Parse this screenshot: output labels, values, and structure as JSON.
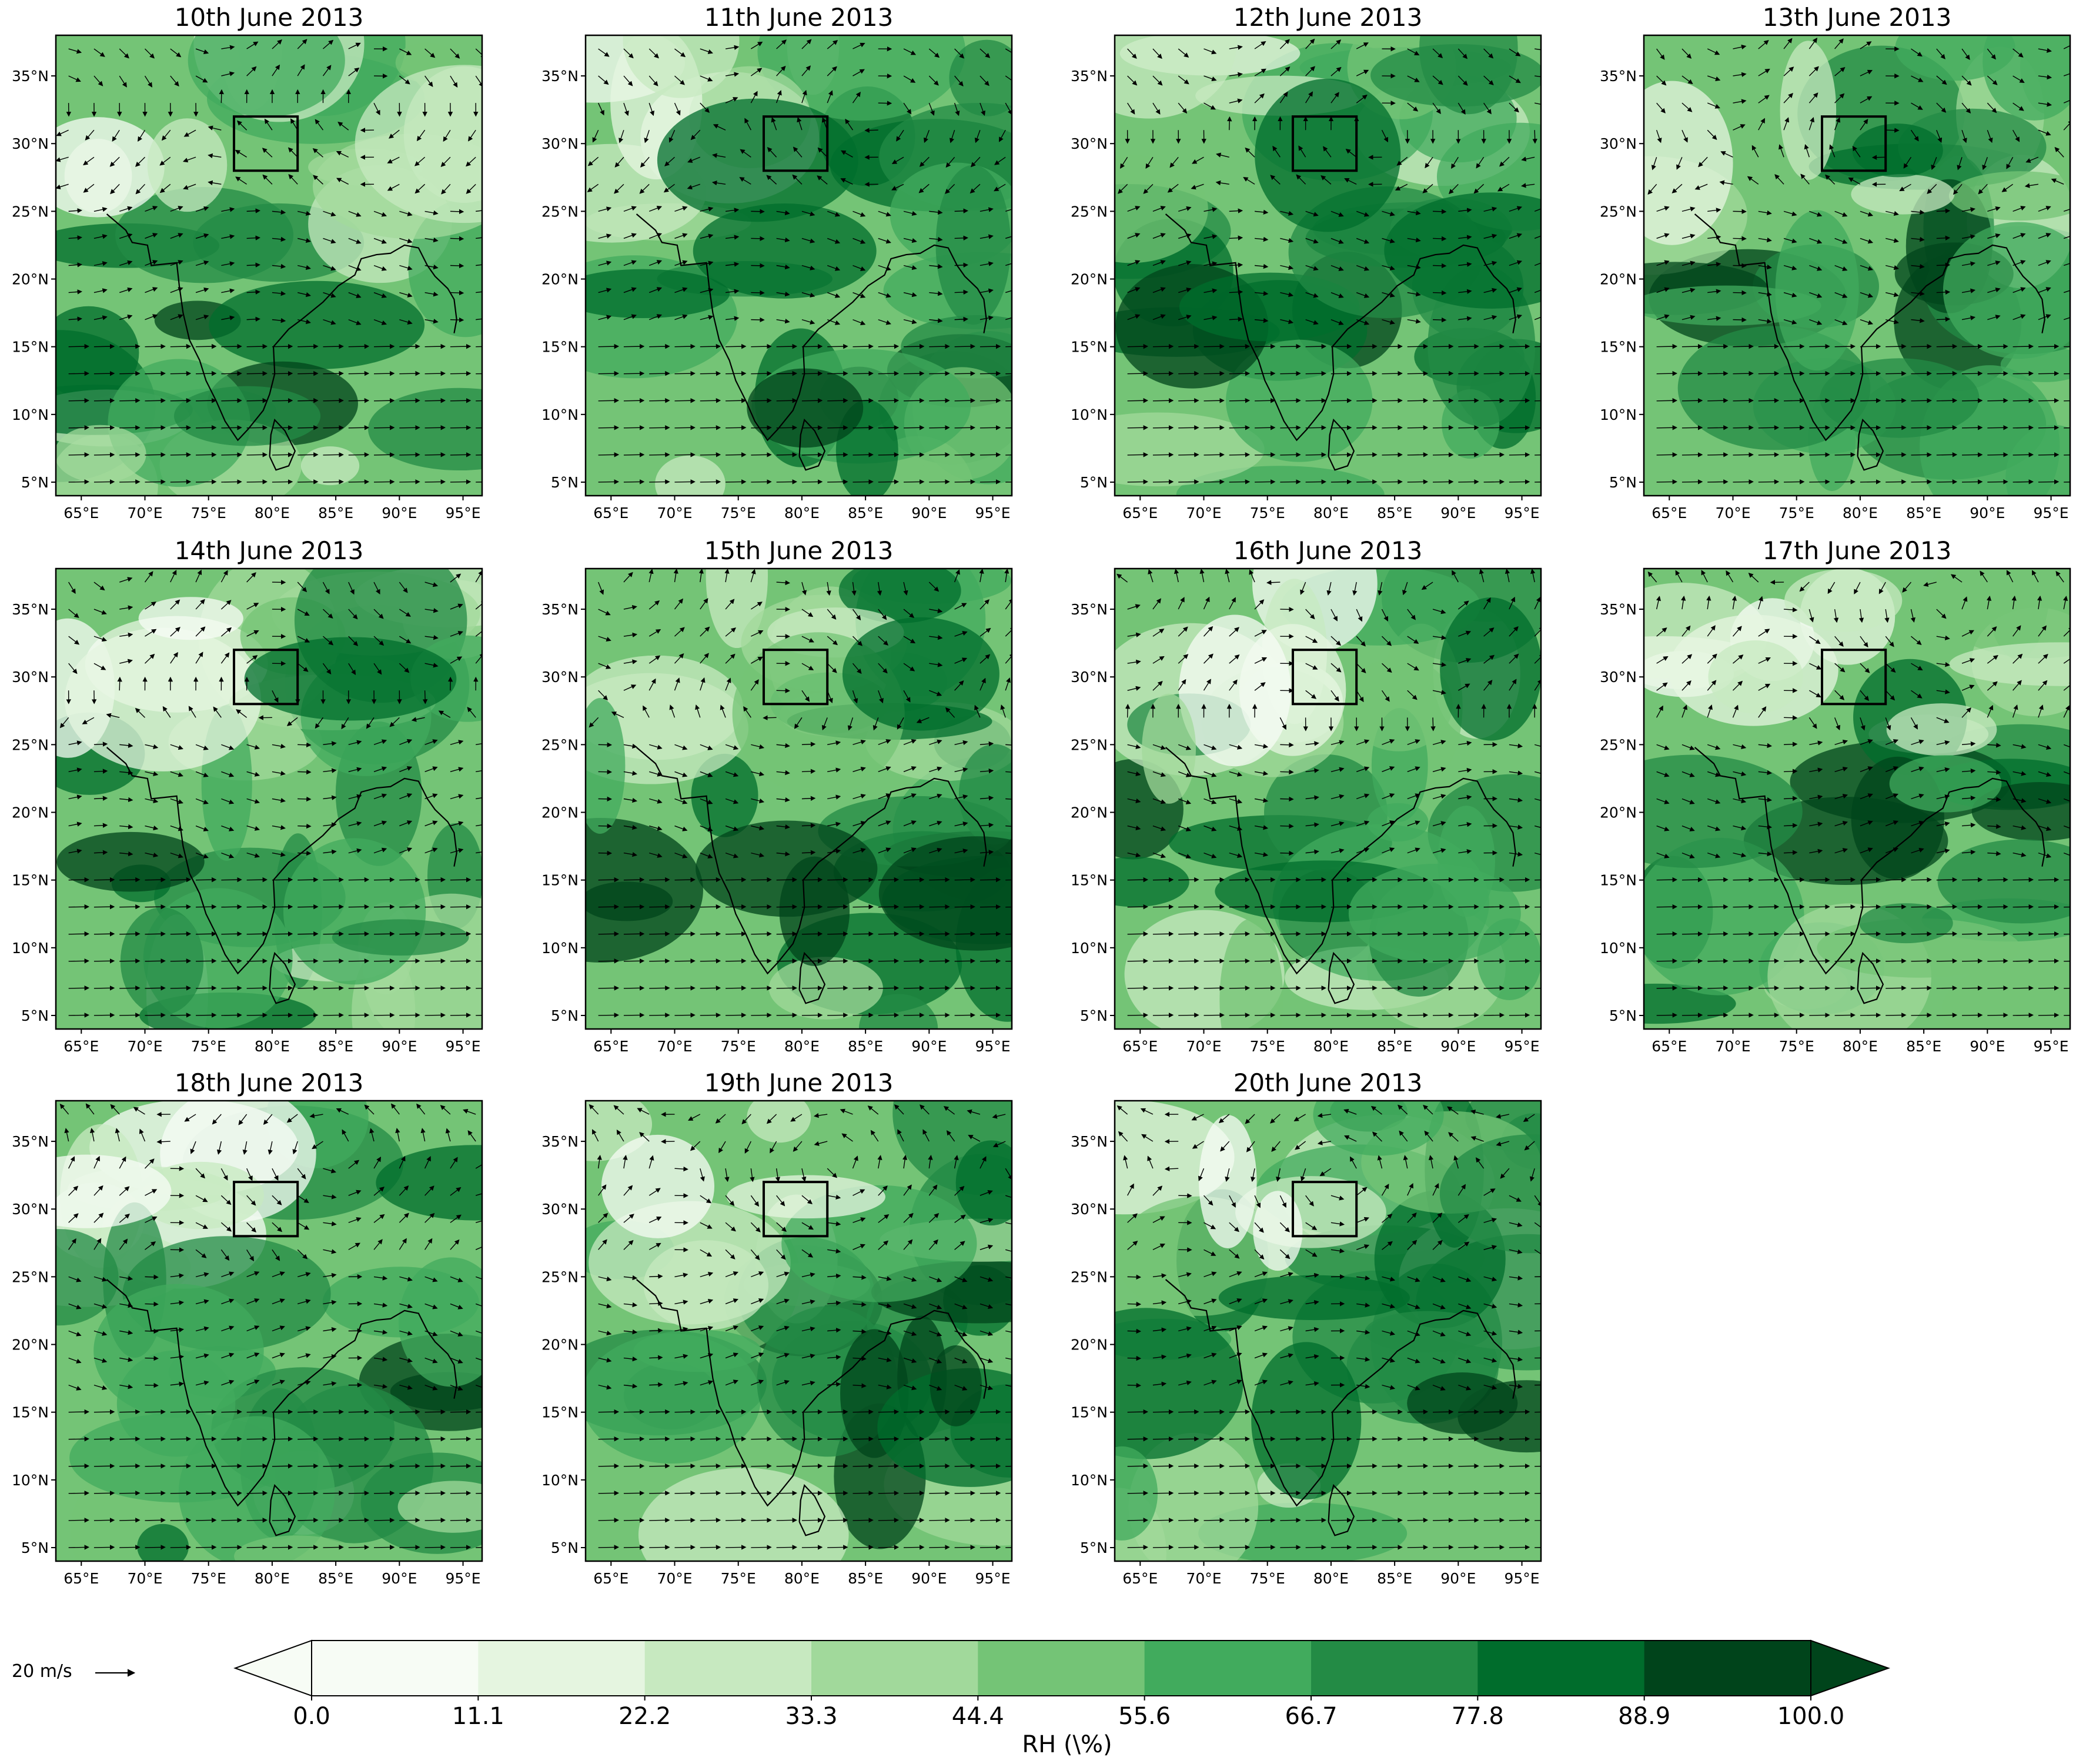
{
  "panels": [
    {
      "title": "10th June 2013"
    },
    {
      "title": "11th June 2013"
    },
    {
      "title": "12th June 2013"
    },
    {
      "title": "13th June 2013"
    },
    {
      "title": "14th June 2013"
    },
    {
      "title": "15th June 2013"
    },
    {
      "title": "16th June 2013"
    },
    {
      "title": "17th June 2013"
    },
    {
      "title": "18th June 2013"
    },
    {
      "title": "19th June 2013"
    },
    {
      "title": "20th June 2013"
    }
  ],
  "lon_ticks": [
    "65°E",
    "70°E",
    "75°E",
    "80°E",
    "85°E",
    "90°E",
    "95°E"
  ],
  "lat_ticks": [
    "35°N",
    "30°N",
    "25°N",
    "20°N",
    "15°N",
    "10°N",
    "5°N"
  ],
  "map_extent": {
    "lon": [
      63,
      96.5
    ],
    "lat": [
      4,
      38
    ]
  },
  "study_box": {
    "lon": [
      77,
      82
    ],
    "lat": [
      28,
      32
    ]
  },
  "colorbar": {
    "label": "RH (\\%)",
    "ticks": [
      "0.0",
      "11.1",
      "22.2",
      "33.3",
      "44.4",
      "55.6",
      "66.7",
      "77.8",
      "88.9",
      "100.0"
    ],
    "colors": [
      "#f7fcf5",
      "#e5f5e0",
      "#c7e9c0",
      "#a1d99b",
      "#74c476",
      "#41ab5d",
      "#238b45",
      "#006d2c",
      "#00441b"
    ],
    "extend": "both"
  },
  "wind_reference": {
    "label": "20 m/s"
  },
  "colormap": "Greens",
  "grid": false
}
